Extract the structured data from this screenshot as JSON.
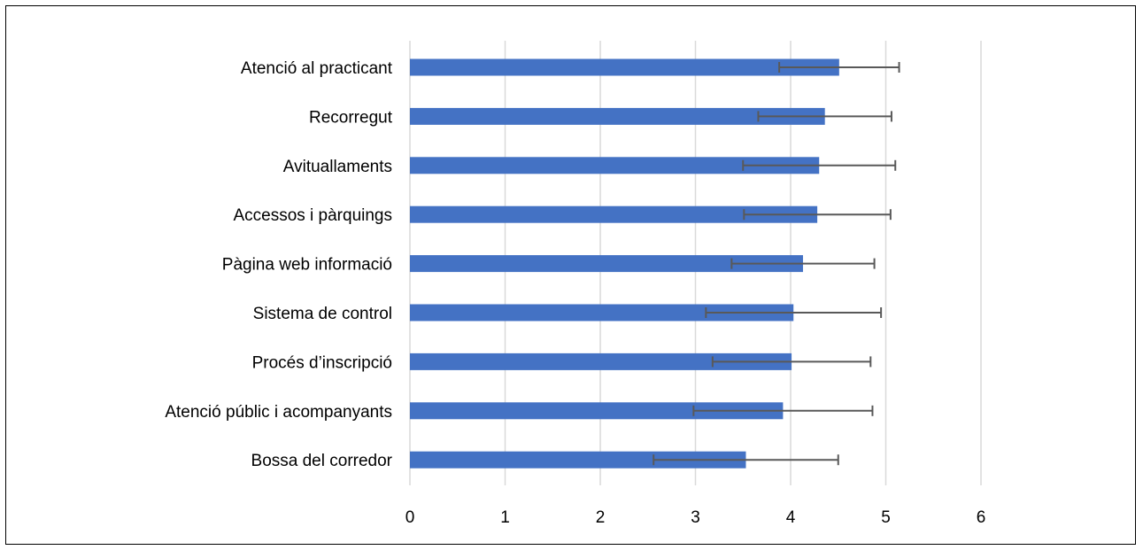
{
  "chart_data": {
    "type": "bar",
    "orientation": "horizontal",
    "categories": [
      "Atenció al practicant",
      "Recorregut",
      "Avituallaments",
      "Accessos i pàrquings",
      "Pàgina web informació",
      "Sistema de control",
      "Procés d’inscripció",
      "Atenció públic i acompanyants",
      "Bossa del corredor"
    ],
    "values": [
      4.51,
      4.36,
      4.3,
      4.28,
      4.13,
      4.03,
      4.01,
      3.92,
      3.53
    ],
    "error": [
      0.63,
      0.7,
      0.8,
      0.77,
      0.75,
      0.92,
      0.83,
      0.94,
      0.97
    ],
    "xlim": [
      0,
      6
    ],
    "xticks": [
      "0",
      "1",
      "2",
      "3",
      "4",
      "5",
      "6"
    ],
    "title": "",
    "xlabel": "",
    "ylabel": "",
    "grid": "vertical",
    "legend": "none",
    "colors": {
      "bar": "#4472C4",
      "error": "#595959",
      "grid": "#D9D9D9"
    }
  }
}
